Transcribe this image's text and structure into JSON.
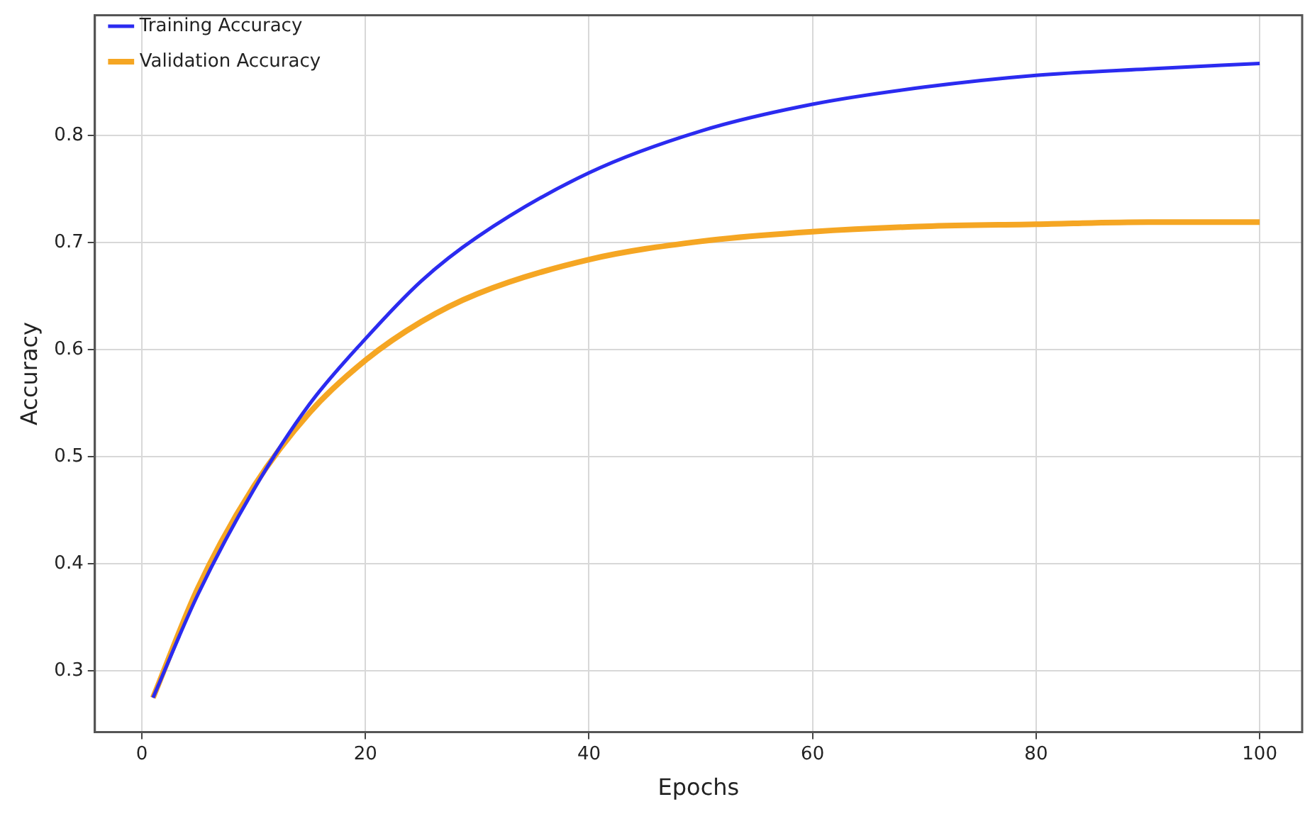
{
  "chart_data": {
    "type": "line",
    "xlabel": "Epochs",
    "ylabel": "Accuracy",
    "x": [
      1,
      5,
      10,
      15,
      20,
      25,
      30,
      40,
      50,
      60,
      70,
      80,
      90,
      100
    ],
    "series": [
      {
        "name": "Training Accuracy",
        "color": "#2b2bf0",
        "values": [
          0.275,
          0.371,
          0.469,
          0.549,
          0.61,
          0.664,
          0.705,
          0.765,
          0.804,
          0.829,
          0.845,
          0.856,
          0.862,
          0.867
        ]
      },
      {
        "name": "Validation Accuracy",
        "color": "#f5a623",
        "values": [
          0.275,
          0.377,
          0.472,
          0.541,
          0.59,
          0.626,
          0.652,
          0.684,
          0.701,
          0.71,
          0.715,
          0.717,
          0.719,
          0.719
        ]
      }
    ],
    "xlim": [
      -4.2,
      103.8
    ],
    "xticks": [
      0,
      20,
      40,
      60,
      80,
      100
    ],
    "ylim": [
      0.243,
      0.912
    ],
    "yticks": [
      0.3,
      0.4,
      0.5,
      0.6,
      0.7,
      0.8
    ],
    "grid": true,
    "legend": "top left",
    "marker": "none",
    "line_style": "solid"
  }
}
